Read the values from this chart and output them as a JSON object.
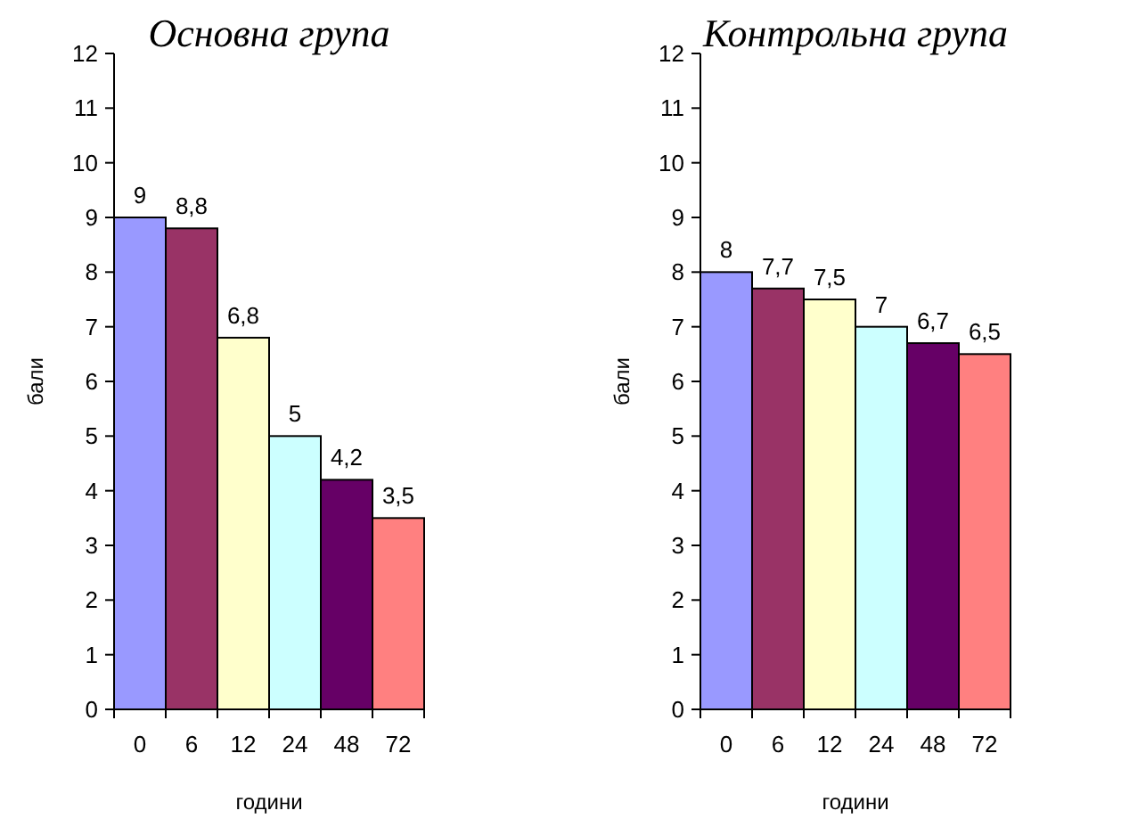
{
  "chart_data": [
    {
      "type": "bar",
      "title": "Основна група",
      "xlabel": "години",
      "ylabel": "бали",
      "categories": [
        "0",
        "6",
        "12",
        "24",
        "48",
        "72"
      ],
      "values": [
        9,
        8.8,
        6.8,
        5,
        4.2,
        3.5
      ],
      "colors": [
        "#9999ff",
        "#993366",
        "#ffffcc",
        "#ccffff",
        "#660066",
        "#ff8080"
      ],
      "value_labels": [
        "9",
        "8,8",
        "6,8",
        "5",
        "4,2",
        "3,5"
      ],
      "ylim": [
        0,
        12
      ],
      "yticks": [
        0,
        1,
        2,
        3,
        4,
        5,
        6,
        7,
        8,
        9,
        10,
        11,
        12
      ],
      "grid": false
    },
    {
      "type": "bar",
      "title": "Контрольна група",
      "xlabel": "години",
      "ylabel": "бали",
      "categories": [
        "0",
        "6",
        "12",
        "24",
        "48",
        "72"
      ],
      "values": [
        8,
        7.7,
        7.5,
        7,
        6.7,
        6.5
      ],
      "colors": [
        "#9999ff",
        "#993366",
        "#ffffcc",
        "#ccffff",
        "#660066",
        "#ff8080"
      ],
      "value_labels": [
        "8",
        "7,7",
        "7,5",
        "7",
        "6,7",
        "6,5"
      ],
      "ylim": [
        0,
        12
      ],
      "yticks": [
        0,
        1,
        2,
        3,
        4,
        5,
        6,
        7,
        8,
        9,
        10,
        11,
        12
      ],
      "grid": false
    }
  ]
}
